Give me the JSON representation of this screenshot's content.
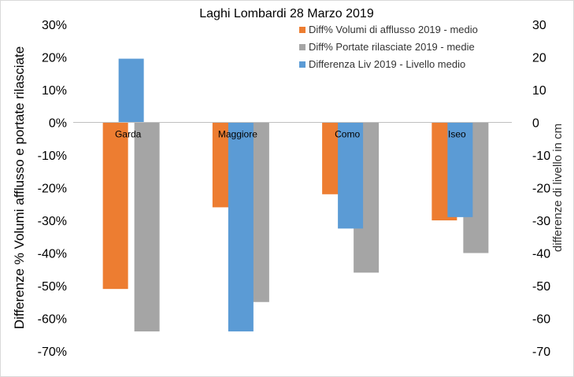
{
  "chart_data": {
    "type": "bar",
    "title": "Laghi Lombardi 28 Marzo 2019",
    "categories": [
      "Garda",
      "Maggiore",
      "Como",
      "Iseo"
    ],
    "series": [
      {
        "name": "Diff% Volumi di afflusso 2019 - medio",
        "axis": "left",
        "color": "#ED7D31",
        "values": [
          -51,
          -26,
          -22,
          -30
        ]
      },
      {
        "name": "Diff% Portate rilasciate 2019 - medie",
        "axis": "left",
        "color": "#A5A5A5",
        "values": [
          -64,
          -55,
          -46,
          -40
        ]
      },
      {
        "name": "Differenza Liv 2019 - Livello medio",
        "axis": "right",
        "color": "#5B9BD5",
        "values": [
          19.5,
          -64,
          -32.5,
          -29
        ]
      }
    ],
    "y_left": {
      "label": "Differenze % Volumi afflusso e portate rilasciate",
      "min": -70,
      "max": 30,
      "step": 10,
      "format": "percent"
    },
    "y_right": {
      "label": "differenze di livello in cm",
      "min": -70,
      "max": 30,
      "step": 10
    },
    "grid": false,
    "legend": "top-right"
  }
}
